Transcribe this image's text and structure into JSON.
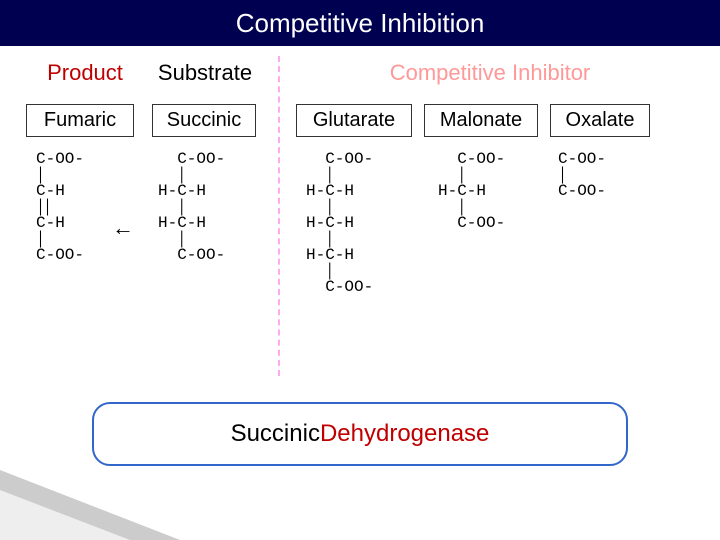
{
  "title": "Competitive Inhibition",
  "headers": {
    "product": "Product",
    "substrate": "Substrate",
    "inhibitor": "Competitive Inhibitor"
  },
  "names": {
    "fumaric": "Fumaric",
    "succinic": "Succinic",
    "glutarate": "Glutarate",
    "malonate": "Malonate",
    "oxalate": "Oxalate"
  },
  "mol": {
    "coo": "C-OO-",
    "ch": "C-H",
    "hch": "H-C-H"
  },
  "enzyme": {
    "black": "Succinic ",
    "red": "Dehydrogenase"
  },
  "colors": {
    "title_bg": "#000050",
    "title_fg": "#ffffff",
    "product": "#c00000",
    "inhibitor_faded": "#ff9999",
    "divider": "#ffaaee",
    "enzyme_border": "#3366cc"
  }
}
